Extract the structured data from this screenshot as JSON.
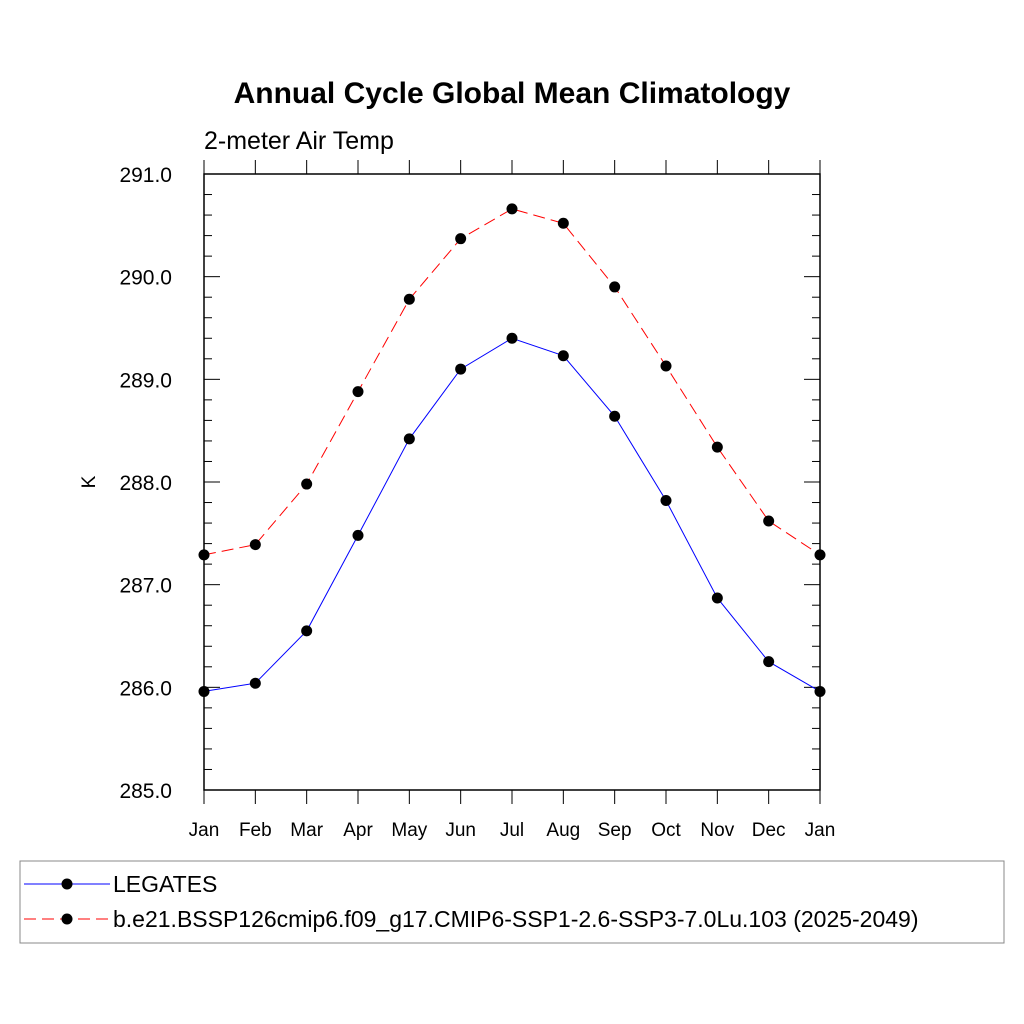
{
  "chart_data": {
    "type": "line",
    "title": "Annual Cycle Global Mean Climatology",
    "subtitle": "2-meter Air Temp",
    "xlabel": "",
    "ylabel": "K",
    "ylim": [
      285.0,
      291.0
    ],
    "ytick_values": [
      285.0,
      286.0,
      287.0,
      288.0,
      289.0,
      290.0,
      291.0
    ],
    "ytick_labels": [
      "285.0",
      "286.0",
      "287.0",
      "288.0",
      "289.0",
      "290.0",
      "291.0"
    ],
    "categories": [
      "Jan",
      "Feb",
      "Mar",
      "Apr",
      "May",
      "Jun",
      "Jul",
      "Aug",
      "Sep",
      "Oct",
      "Nov",
      "Dec",
      "Jan"
    ],
    "legend_position": "bottom",
    "grid": false,
    "series": [
      {
        "name": "LEGATES",
        "color": "#0000ff",
        "line_style": "solid",
        "marker": "circle",
        "values": [
          285.96,
          286.04,
          286.55,
          287.48,
          288.42,
          289.1,
          289.4,
          289.23,
          288.64,
          287.82,
          286.87,
          286.25,
          285.96
        ]
      },
      {
        "name": "b.e21.BSSP126cmip6.f09_g17.CMIP6-SSP1-2.6-SSP3-7.0Lu.103 (2025-2049)",
        "color": "#ff0000",
        "line_style": "dashed",
        "marker": "circle",
        "values": [
          287.29,
          287.39,
          287.98,
          288.88,
          289.78,
          290.37,
          290.66,
          290.52,
          289.9,
          289.13,
          288.34,
          287.62,
          287.29
        ]
      }
    ]
  }
}
